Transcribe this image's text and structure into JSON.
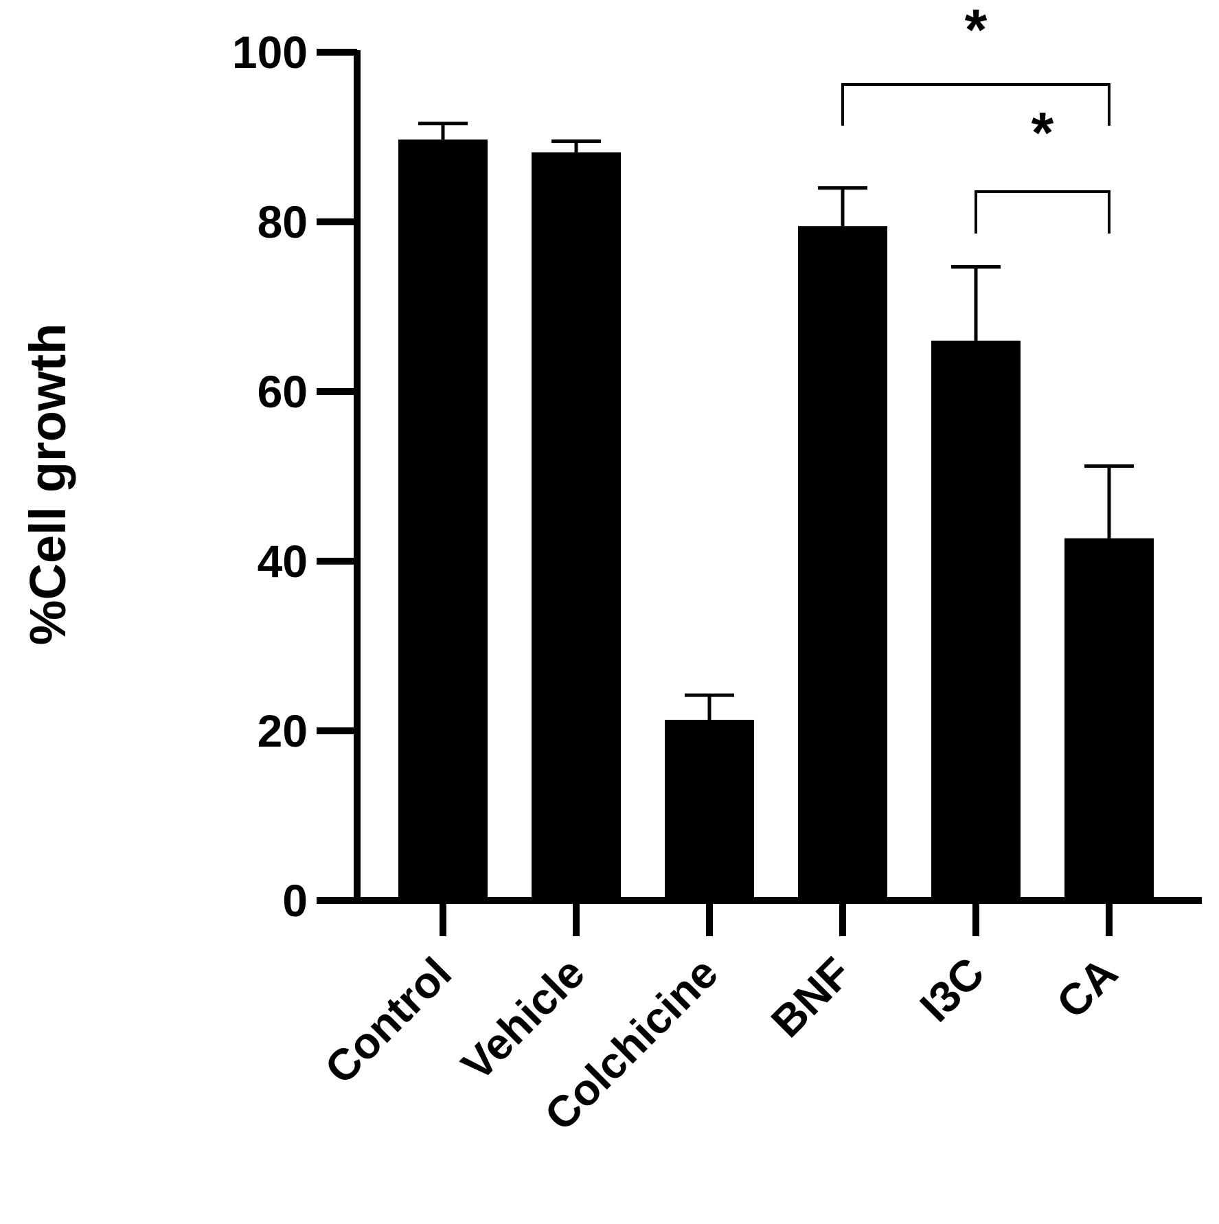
{
  "chart_data": {
    "type": "bar",
    "title": "",
    "xlabel": "",
    "ylabel": "%Cell growth",
    "ylim": [
      0,
      100
    ],
    "yticks": [
      0,
      20,
      40,
      60,
      80,
      100
    ],
    "categories": [
      "Control",
      "Vehicle",
      "Colchicine",
      "BNF",
      "I3C",
      "CA"
    ],
    "values": [
      89.7,
      88.2,
      21.3,
      79.5,
      66.0,
      42.7
    ],
    "error_upper": [
      91.6,
      89.5,
      24.2,
      84.0,
      74.7,
      51.2
    ],
    "bar_color": "#000000",
    "grid": false,
    "legend": "none",
    "annotations": [
      {
        "from": "BNF",
        "to": "CA",
        "label": "*"
      },
      {
        "from": "I3C",
        "to": "CA",
        "label": "*"
      }
    ]
  }
}
